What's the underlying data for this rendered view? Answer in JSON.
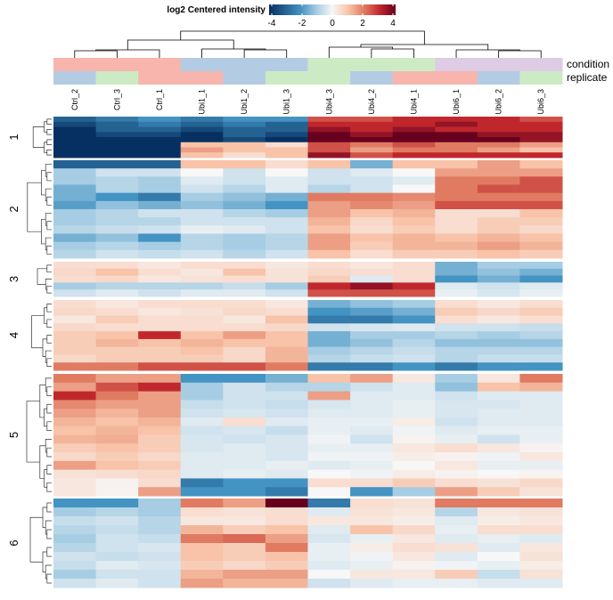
{
  "chart_data": {
    "type": "heatmap",
    "legend": {
      "title": "log2 Centered intensity",
      "ticks": [
        -4,
        -2,
        0,
        2,
        4
      ],
      "range": [
        -4,
        4
      ],
      "placement": "top-center"
    },
    "color_scale": {
      "-4": "#053061",
      "-2": "#4393c3",
      "-1": "#a6cde3",
      "0": "#f7f7f7",
      "1": "#f8c3a8",
      "2": "#e07b62",
      "3": "#c0272d",
      "4": "#67001f"
    },
    "columns": [
      "Ctrl_2",
      "Ctrl_3",
      "Ctrl_1",
      "Ubi1_1",
      "Ubi1_2",
      "Ubi1_3",
      "Ubi4_3",
      "Ubi4_2",
      "Ubi4_1",
      "Ubi6_1",
      "Ubi6_2",
      "Ubi6_3"
    ],
    "annotations": [
      {
        "name": "condition",
        "values": [
          "Ctrl",
          "Ctrl",
          "Ctrl",
          "Ubi1",
          "Ubi1",
          "Ubi1",
          "Ubi4",
          "Ubi4",
          "Ubi4",
          "Ubi6",
          "Ubi6",
          "Ubi6"
        ],
        "colors": {
          "Ctrl": "#f8b5ae",
          "Ubi1": "#b4cce3",
          "Ubi4": "#ccebc5",
          "Ubi6": "#decbe4"
        }
      },
      {
        "name": "replicate",
        "values": [
          "2",
          "3",
          "1",
          "1",
          "2",
          "3",
          "3",
          "2",
          "1",
          "1",
          "2",
          "3"
        ],
        "colors": {
          "1": "#f8b5ae",
          "2": "#b4cce3",
          "3": "#ccebc5"
        }
      }
    ],
    "row_clusters": [
      {
        "label": "1",
        "rows": [
          [
            -3,
            -2.5,
            -2,
            -2.5,
            -2,
            -2,
            2.5,
            2.5,
            3,
            3,
            3,
            2.5
          ],
          [
            -3.5,
            -3,
            -2.5,
            -3,
            -2.5,
            -3,
            3,
            3,
            3,
            3.5,
            3,
            3
          ],
          [
            -4,
            -3,
            -3,
            -3.5,
            -3,
            -3,
            3.5,
            3,
            3.5,
            3,
            3,
            3
          ],
          [
            -4,
            -3.5,
            -3.5,
            -4,
            -3,
            -3.5,
            4,
            3.5,
            4,
            4,
            3.5,
            3.5
          ],
          [
            -4,
            -4,
            -4,
            -4,
            -3.5,
            -4,
            4.5,
            4,
            4.5,
            4,
            4,
            3.5
          ],
          [
            -4.5,
            -4,
            -4,
            1,
            1,
            0.5,
            2.5,
            2,
            2.5,
            2,
            2,
            1.5
          ],
          [
            -4.5,
            -4,
            -4,
            1.5,
            1,
            1,
            2.5,
            1.5,
            2,
            2,
            1.5,
            1
          ],
          [
            -4.5,
            -4.5,
            -4.5,
            1,
            0.5,
            1,
            3.5,
            2.5,
            3,
            3,
            3,
            3
          ]
        ]
      },
      {
        "label": "2",
        "rows": [
          [
            -3,
            -3,
            -3,
            1,
            1,
            0.5,
            1,
            -1.5,
            1,
            1,
            1.5,
            1
          ],
          [
            -1,
            -0.5,
            -0.5,
            0,
            -0.5,
            0,
            -0.5,
            -0.3,
            0,
            1.5,
            1.5,
            1.5
          ],
          [
            -1,
            -0.8,
            -1,
            -0.3,
            -0.5,
            -0.3,
            -0.5,
            -0.5,
            -0.3,
            2,
            2,
            2.5
          ],
          [
            -1.5,
            -0.8,
            -1,
            -0.5,
            -0.8,
            -0.3,
            -0.8,
            -0.5,
            0,
            2,
            2.5,
            2.5
          ],
          [
            -1.5,
            -2,
            -2.5,
            -1,
            -1.2,
            -1.5,
            2,
            2,
            1.8,
            2,
            2,
            2
          ],
          [
            -1.8,
            -1.2,
            -1.5,
            -1.2,
            -1.5,
            -2,
            1.5,
            1.8,
            1.5,
            2.5,
            2.5,
            2.5
          ],
          [
            -1,
            -0.8,
            -0.5,
            -0.5,
            -0.8,
            -1,
            1.5,
            1,
            1.2,
            0.5,
            0.5,
            1
          ],
          [
            -1,
            -0.8,
            -0.8,
            -0.5,
            -0.5,
            -0.5,
            1.2,
            0.6,
            1,
            0.5,
            0.8,
            0.8
          ],
          [
            -0.8,
            -0.6,
            -0.5,
            -0.2,
            -0.3,
            -0.5,
            1,
            0.5,
            0.8,
            0.5,
            0.8,
            0.6
          ],
          [
            -1.5,
            -1.2,
            -2,
            -0.8,
            -1,
            -0.8,
            1.5,
            1,
            1.2,
            1,
            1.2,
            1
          ],
          [
            -1,
            -0.8,
            -1,
            -0.8,
            -1,
            -0.8,
            1.5,
            0.8,
            1.2,
            1.2,
            1.5,
            1.2
          ],
          [
            -0.8,
            -0.5,
            -0.6,
            -0.5,
            -0.8,
            -0.5,
            1,
            0.5,
            0.8,
            0.8,
            1,
            0.8
          ]
        ]
      },
      {
        "label": "3",
        "rows": [
          [
            0.5,
            0.5,
            0.3,
            0.5,
            0.5,
            0.3,
            0.5,
            0.3,
            0.5,
            -1.5,
            -1,
            -1
          ],
          [
            0.6,
            1,
            0.5,
            0.3,
            1,
            0.4,
            0.6,
            0.5,
            0.5,
            -1.5,
            -1.2,
            -1.5
          ],
          [
            0.5,
            0.6,
            0.3,
            0.4,
            0.5,
            0.4,
            0.8,
            -0.3,
            0.5,
            -2,
            -1.5,
            -2
          ],
          [
            -1,
            -0.8,
            -0.8,
            -0.8,
            -0.6,
            -1,
            3,
            3.5,
            3,
            -0.3,
            -0.5,
            -0.3
          ],
          [
            -0.5,
            -0.3,
            -0.5,
            -0.3,
            -0.3,
            -0.5,
            2.5,
            2.5,
            2.5,
            -0.2,
            -0.4,
            -0.2
          ]
        ]
      },
      {
        "label": "4",
        "rows": [
          [
            0.5,
            0.3,
            0.5,
            0.5,
            0.5,
            0.3,
            -1.5,
            -1.2,
            -1,
            0.5,
            0.3,
            0.5
          ],
          [
            0.6,
            0.5,
            0.3,
            0.4,
            0.6,
            0.5,
            -2,
            -1.8,
            -1.5,
            0.8,
            0.6,
            0.8
          ],
          [
            0.3,
            0.8,
            0.5,
            0.5,
            0.3,
            1,
            -2.5,
            -2.5,
            -2,
            0.5,
            0.3,
            0.5
          ],
          [
            0.6,
            0.5,
            0.5,
            0.5,
            0.5,
            0.6,
            -0.5,
            -0.4,
            -0.3,
            -0.5,
            -0.5,
            -0.6
          ],
          [
            0.8,
            1,
            3,
            1,
            1.5,
            1,
            -1.5,
            -1,
            -1,
            -0.8,
            -1,
            -0.8
          ],
          [
            0.8,
            1.2,
            1,
            1.2,
            1,
            1,
            -1.5,
            -1.2,
            -0.8,
            -1.2,
            -1.2,
            -1.2
          ],
          [
            0.8,
            0.8,
            0.8,
            1,
            0.6,
            1.2,
            -1,
            -0.8,
            -0.6,
            -0.8,
            -0.8,
            -0.8
          ],
          [
            0.6,
            0.8,
            0.8,
            0.8,
            0.6,
            1.2,
            -0.8,
            -0.6,
            -0.5,
            -0.8,
            -0.6,
            -0.6
          ],
          [
            2,
            2,
            2.5,
            2.5,
            2.5,
            2,
            -2.5,
            -2.5,
            -2,
            -2.5,
            -2,
            -2
          ]
        ]
      },
      {
        "label": "5",
        "rows": [
          [
            2,
            1.5,
            1.5,
            -2,
            -2,
            -1.5,
            1,
            1.5,
            0.3,
            -1,
            0.3,
            2
          ],
          [
            1.5,
            2.5,
            3,
            -1,
            -0.5,
            -0.8,
            -0.8,
            -0.5,
            -0.3,
            -1.2,
            1,
            1.2
          ],
          [
            3,
            2,
            1.5,
            -1,
            -0.5,
            -0.5,
            1.5,
            -0.3,
            -0.3,
            -0.5,
            -0.3,
            -0.3
          ],
          [
            1.8,
            1.5,
            1.5,
            -0.6,
            -0.5,
            -0.6,
            -0.4,
            -0.3,
            -0.2,
            -0.4,
            -0.4,
            -0.3
          ],
          [
            1.5,
            1.2,
            1.5,
            -0.5,
            -0.4,
            -0.5,
            -0.3,
            -0.3,
            -0.2,
            -0.4,
            -0.3,
            -0.3
          ],
          [
            1.2,
            1,
            1.2,
            -0.3,
            0.5,
            -0.3,
            -0.2,
            -0.2,
            0.2,
            -0.5,
            -0.3,
            -0.3
          ],
          [
            1,
            1.2,
            1,
            -0.5,
            -0.4,
            -0.6,
            -0.2,
            -0.3,
            -0.1,
            -0.3,
            -0.2,
            -0.2
          ],
          [
            1.2,
            1.3,
            0.8,
            -0.4,
            -0.5,
            -0.4,
            -0.1,
            -0.5,
            0.1,
            -0.2,
            -0.5,
            -0.2
          ],
          [
            0.8,
            1,
            0.8,
            -0.4,
            -0.3,
            -0.4,
            -0.2,
            -0.2,
            0.3,
            0.5,
            0.3,
            0.1
          ],
          [
            0.6,
            0.8,
            0.6,
            -0.3,
            -0.3,
            -0.4,
            -0.1,
            -0.1,
            0.2,
            0.1,
            -0.1,
            0.3
          ],
          [
            1.5,
            1,
            0.8,
            -0.3,
            -0.3,
            -0.2,
            -0.3,
            -0.2,
            0,
            0.3,
            -0.2,
            -0.2
          ],
          [
            0.4,
            0.5,
            0.6,
            -0.3,
            -0.2,
            -0.3,
            0,
            -0.1,
            0.2,
            0.1,
            0,
            0.1
          ],
          [
            0.3,
            0.1,
            0.5,
            -2.5,
            -2,
            -2,
            0.5,
            0.5,
            0.8,
            0.5,
            0.4,
            0.6
          ],
          [
            0.3,
            0.1,
            1.5,
            -2,
            -2,
            -2.5,
            0,
            -2,
            -1,
            1.5,
            0.8,
            0.4
          ]
        ]
      },
      {
        "label": "6",
        "rows": [
          [
            -2,
            -2,
            -1,
            2,
            1.5,
            4,
            -2.5,
            0.5,
            0.4,
            2,
            2,
            2
          ],
          [
            -1,
            -0.8,
            -1,
            0.5,
            0.4,
            0.5,
            -0.3,
            0.4,
            0.3,
            -0.8,
            0.3,
            0.4
          ],
          [
            -0.6,
            -0.5,
            -0.8,
            0.3,
            0.3,
            0.5,
            0.3,
            0.3,
            0.2,
            -0.3,
            0.2,
            0.3
          ],
          [
            -0.8,
            -0.6,
            -0.8,
            1.2,
            0.8,
            1,
            -0.3,
            1,
            0.6,
            -0.2,
            0.5,
            0.5
          ],
          [
            -1,
            -0.5,
            -0.6,
            2,
            2.2,
            1.5,
            -0.4,
            -0.2,
            0.3,
            -0.3,
            -0.2,
            -0.3
          ],
          [
            -0.8,
            -0.5,
            -0.4,
            1,
            0.8,
            2,
            -0.2,
            0.2,
            0.5,
            0.4,
            -0.3,
            0.3
          ],
          [
            -0.5,
            -0.6,
            -0.5,
            1,
            0.8,
            1,
            -0.2,
            -0.1,
            0.3,
            -0.3,
            0,
            0.4
          ],
          [
            -0.6,
            -0.3,
            -0.4,
            0.8,
            0.6,
            0.8,
            -0.3,
            -0.2,
            0.1,
            -0.1,
            -0.2,
            0.2
          ],
          [
            -1,
            -0.5,
            -0.5,
            1.2,
            1.5,
            1.5,
            0,
            0.3,
            0.3,
            0.8,
            -0.6,
            0.4
          ],
          [
            -0.5,
            -0.3,
            -0.5,
            1.5,
            1.2,
            1.2,
            -0.5,
            -0.3,
            -0.2,
            -0.2,
            -0.3,
            -0.3
          ]
        ]
      }
    ],
    "column_dendrogram": true,
    "row_dendrogram": true
  }
}
